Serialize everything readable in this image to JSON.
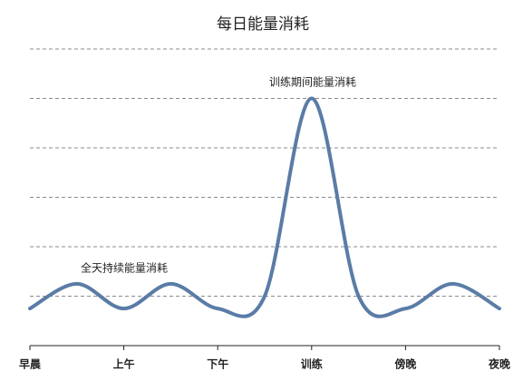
{
  "chart_data": {
    "type": "line",
    "title": "每日能量消耗",
    "categories": [
      "早晨",
      null,
      "上午",
      null,
      "下午",
      null,
      "训练",
      null,
      "傍晚",
      null,
      "夜晚"
    ],
    "series": [
      {
        "color": "#5a7ca6",
        "values": [
          0.75,
          1.25,
          0.75,
          1.25,
          0.75,
          1.0,
          5,
          1.0,
          0.75,
          1.25,
          0.75
        ]
      }
    ],
    "annotations": [
      "训练期间能量消耗",
      "全天持续能量消耗"
    ],
    "ylim": [
      0,
      6
    ],
    "yticks": [
      1,
      2,
      3,
      4,
      5,
      6
    ],
    "grid": true
  }
}
